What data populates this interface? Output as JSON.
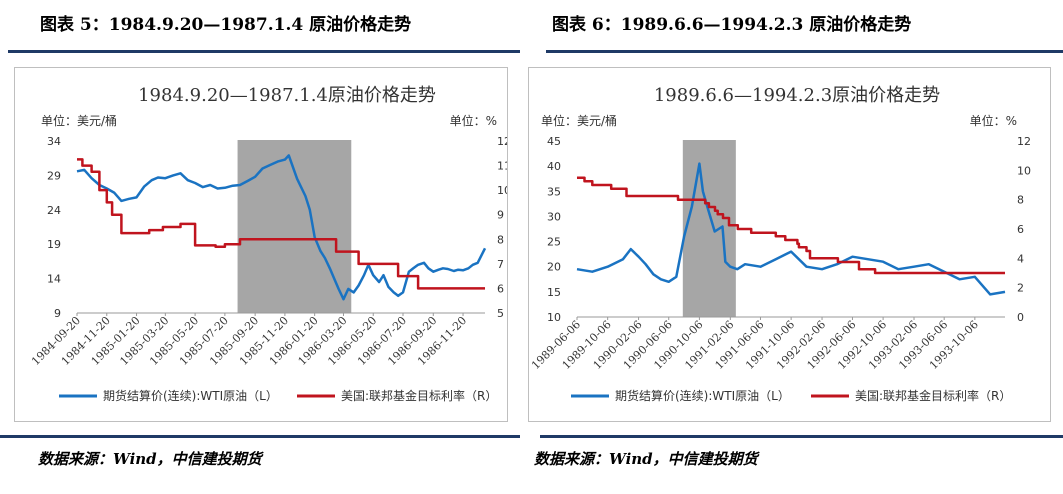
{
  "figures": [
    {
      "heading": "图表 5：1984.9.20—1987.1.4 原油价格走势",
      "source": "数据来源：Wind，中信建投期货",
      "chart_data": {
        "type": "line",
        "title": "1984.9.20—1987.1.4原油价格走势",
        "left_unit": "单位：美元/桶",
        "right_unit": "单位：%",
        "ylim_left": [
          9,
          34
        ],
        "yticks_left": [
          9,
          14,
          19,
          24,
          29,
          34
        ],
        "ylim_right": [
          5,
          12
        ],
        "yticks_right": [
          5,
          6,
          7,
          8,
          9,
          10,
          11,
          12
        ],
        "x_tick_labels": [
          "1984-09-20",
          "1984-11-20",
          "1985-01-20",
          "1985-03-20",
          "1985-05-20",
          "1985-07-20",
          "1985-09-20",
          "1985-11-20",
          "1986-01-20",
          "1986-03-20",
          "1986-05-20",
          "1986-07-20",
          "1986-09-20",
          "1986-11-20"
        ],
        "x_start": "1984-09-20",
        "x_end": "1987-01-04",
        "shaded_period": [
          "1985-08-15",
          "1986-04-05"
        ],
        "legend": "bottom",
        "series": [
          {
            "name": "期货结算价(连续):WTI原油（L）",
            "axis": "left",
            "color": "#1a73c2",
            "x": [
              "1984-09-20",
              "1984-10-05",
              "1984-10-20",
              "1984-11-05",
              "1984-11-20",
              "1984-12-05",
              "1984-12-20",
              "1985-01-05",
              "1985-01-20",
              "1985-02-05",
              "1985-02-20",
              "1985-03-05",
              "1985-03-20",
              "1985-04-05",
              "1985-04-20",
              "1985-05-05",
              "1985-05-20",
              "1985-06-05",
              "1985-06-20",
              "1985-07-05",
              "1985-07-20",
              "1985-08-05",
              "1985-08-20",
              "1985-09-05",
              "1985-09-20",
              "1985-10-05",
              "1985-10-20",
              "1985-11-05",
              "1985-11-20",
              "1985-11-28",
              "1985-12-05",
              "1985-12-15",
              "1986-01-01",
              "1986-01-10",
              "1986-01-20",
              "1986-02-01",
              "1986-02-10",
              "1986-02-20",
              "1986-03-01",
              "1986-03-10",
              "1986-03-20",
              "1986-03-30",
              "1986-04-10",
              "1986-04-20",
              "1986-05-01",
              "1986-05-10",
              "1986-05-20",
              "1986-06-01",
              "1986-06-10",
              "1986-06-20",
              "1986-07-01",
              "1986-07-10",
              "1986-07-20",
              "1986-08-01",
              "1986-08-10",
              "1986-08-20",
              "1986-09-01",
              "1986-09-10",
              "1986-09-20",
              "1986-10-01",
              "1986-10-10",
              "1986-10-20",
              "1986-11-01",
              "1986-11-10",
              "1986-11-20",
              "1986-12-01",
              "1986-12-10",
              "1986-12-20",
              "1987-01-04"
            ],
            "values": [
              29.6,
              29.8,
              28.6,
              27.6,
              27.1,
              26.5,
              25.3,
              25.6,
              25.8,
              27.4,
              28.3,
              28.7,
              28.6,
              29.0,
              29.3,
              28.3,
              27.9,
              27.3,
              27.6,
              27.1,
              27.2,
              27.5,
              27.6,
              28.2,
              28.8,
              30.0,
              30.5,
              31.0,
              31.3,
              31.9,
              30.5,
              28.5,
              26.0,
              24.0,
              20.0,
              18.0,
              17.0,
              15.5,
              14.0,
              12.5,
              11.0,
              12.5,
              12.0,
              13.0,
              14.5,
              16.0,
              14.5,
              13.5,
              14.5,
              12.8,
              12.0,
              11.5,
              12.0,
              15.0,
              15.5,
              16.0,
              16.3,
              15.5,
              15.0,
              15.3,
              15.5,
              15.4,
              15.1,
              15.3,
              15.2,
              15.5,
              16.0,
              16.3,
              18.4
            ]
          },
          {
            "name": "美国:联邦基金目标利率（R）",
            "axis": "right",
            "color": "#c0141e",
            "step": true,
            "x": [
              "1984-09-20",
              "1984-10-01",
              "1984-10-20",
              "1984-11-05",
              "1984-11-20",
              "1984-12-01",
              "1984-12-20",
              "1985-02-15",
              "1985-03-15",
              "1985-04-20",
              "1985-05-20",
              "1985-07-01",
              "1985-07-20",
              "1985-08-20",
              "1986-03-05",
              "1986-04-20",
              "1986-06-20",
              "1986-07-10",
              "1986-08-20",
              "1987-01-04"
            ],
            "values": [
              11.25,
              11.0,
              10.75,
              10.0,
              9.5,
              9.0,
              8.25,
              8.375,
              8.5,
              8.625,
              7.75,
              7.7,
              7.8,
              8.0,
              7.5,
              7.0,
              7.0,
              6.5,
              6.0,
              6.0
            ]
          }
        ]
      }
    },
    {
      "heading": "图表 6：1989.6.6—1994.2.3 原油价格走势",
      "source": "数据来源：Wind，中信建投期货",
      "chart_data": {
        "type": "line",
        "title": "1989.6.6—1994.2.3原油价格走势",
        "left_unit": "单位：美元/桶",
        "right_unit": "单位：%",
        "ylim_left": [
          10,
          45
        ],
        "yticks_left": [
          10,
          15,
          20,
          25,
          30,
          35,
          40,
          45
        ],
        "ylim_right": [
          0,
          12
        ],
        "yticks_right": [
          0,
          2,
          4,
          6,
          8,
          10,
          12
        ],
        "x_tick_labels": [
          "1989-06-06",
          "1989-10-06",
          "1990-02-06",
          "1990-06-06",
          "1990-10-06",
          "1991-02-06",
          "1991-06-06",
          "1991-10-06",
          "1992-02-06",
          "1992-06-06",
          "1992-10-06",
          "1993-02-06",
          "1993-06-06",
          "1993-10-06"
        ],
        "x_start": "1989-06-06",
        "x_end": "1994-02-03",
        "shaded_period": [
          "1990-08-01",
          "1991-02-28"
        ],
        "legend": "bottom",
        "series": [
          {
            "name": "期货结算价(连续):WTI原油（L）",
            "axis": "left",
            "color": "#1a73c2",
            "x": [
              "1989-06-06",
              "1989-08-06",
              "1989-10-06",
              "1989-12-06",
              "1990-01-06",
              "1990-02-06",
              "1990-03-06",
              "1990-04-06",
              "1990-05-06",
              "1990-06-06",
              "1990-07-06",
              "1990-08-06",
              "1990-09-06",
              "1990-10-06",
              "1990-10-20",
              "1990-11-06",
              "1990-12-06",
              "1991-01-06",
              "1991-01-17",
              "1991-02-06",
              "1991-03-06",
              "1991-04-06",
              "1991-06-06",
              "1991-08-06",
              "1991-10-06",
              "1991-12-06",
              "1992-02-06",
              "1992-04-06",
              "1992-06-06",
              "1992-08-06",
              "1992-10-06",
              "1992-12-06",
              "1993-02-06",
              "1993-04-06",
              "1993-06-06",
              "1993-08-06",
              "1993-10-06",
              "1993-12-06",
              "1994-02-03"
            ],
            "values": [
              19.5,
              19.0,
              20.0,
              21.5,
              23.5,
              22.0,
              20.5,
              18.5,
              17.5,
              17.0,
              18.0,
              26.0,
              32.0,
              40.5,
              35.0,
              32.0,
              27.0,
              28.0,
              21.0,
              20.0,
              19.5,
              20.5,
              20.0,
              21.5,
              23.0,
              20.0,
              19.5,
              20.5,
              22.0,
              21.5,
              21.0,
              19.5,
              20.0,
              20.5,
              19.0,
              17.5,
              18.0,
              14.5,
              15.0
            ]
          },
          {
            "name": "美国:联邦基金目标利率（R）",
            "axis": "right",
            "color": "#c0141e",
            "step": true,
            "x": [
              "1989-06-06",
              "1989-07-06",
              "1989-08-06",
              "1989-10-20",
              "1989-12-20",
              "1990-07-13",
              "1990-10-29",
              "1990-11-13",
              "1990-12-07",
              "1990-12-18",
              "1991-01-08",
              "1991-02-01",
              "1991-03-08",
              "1991-04-30",
              "1991-08-06",
              "1991-09-13",
              "1991-10-31",
              "1991-11-06",
              "1991-12-06",
              "1991-12-20",
              "1992-04-09",
              "1992-07-02",
              "1992-09-04",
              "1994-02-03"
            ],
            "values": [
              9.5,
              9.25,
              9.0,
              8.75,
              8.25,
              8.0,
              7.75,
              7.5,
              7.25,
              7.0,
              6.75,
              6.25,
              6.0,
              5.75,
              5.5,
              5.25,
              5.0,
              4.75,
              4.5,
              4.0,
              3.75,
              3.25,
              3.0,
              3.0
            ]
          }
        ]
      }
    }
  ]
}
